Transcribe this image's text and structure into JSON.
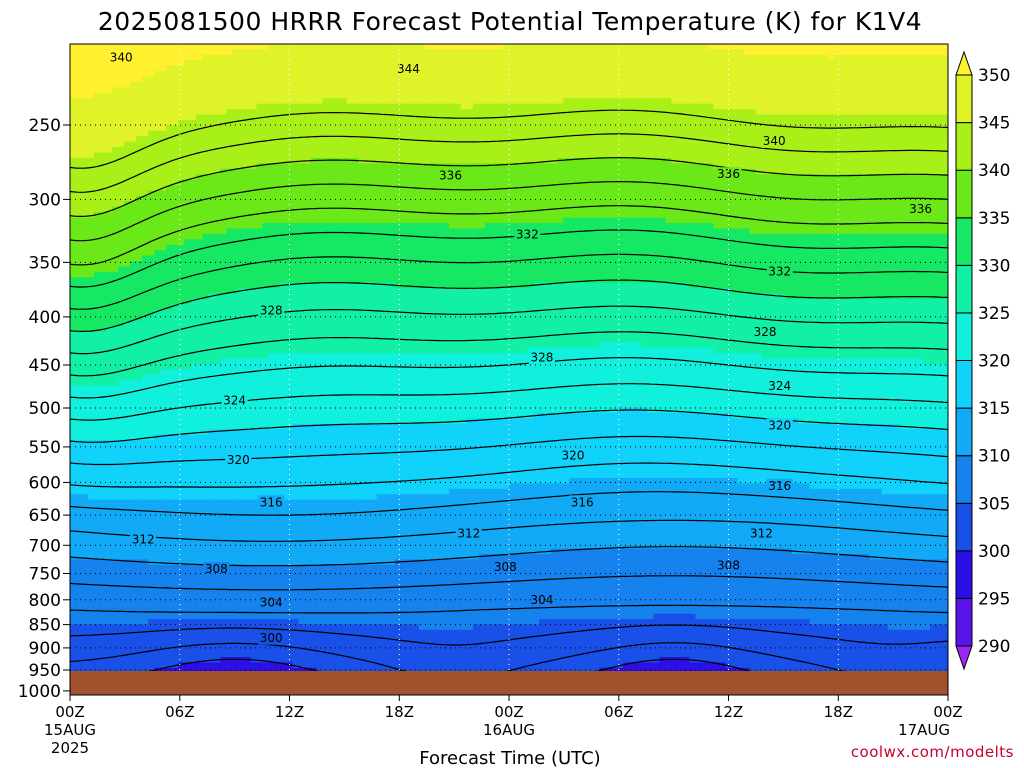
{
  "chart_data": {
    "type": "heatmap",
    "title": "2025081500 HRRR Forecast Potential Temperature (K) for K1V4",
    "xlabel": "Forecast Time (UTC)",
    "ylabel": "",
    "credit": "coolwx.com/modelts",
    "x_ticks": [
      "00Z",
      "06Z",
      "12Z",
      "18Z",
      "00Z",
      "06Z",
      "12Z",
      "18Z",
      "00Z"
    ],
    "x_hours": [
      0,
      6,
      12,
      18,
      24,
      30,
      36,
      42,
      48
    ],
    "x_date_labels": [
      {
        "hour": 0,
        "text": "15AUG"
      },
      {
        "hour": 0,
        "text": "2025"
      },
      {
        "hour": 24,
        "text": "16AUG"
      },
      {
        "hour": 48,
        "text": "17AUG"
      }
    ],
    "xlim": [
      0,
      48
    ],
    "y_axis": "pressure (hPa), log scale, inverted",
    "y_ticks": [
      250,
      300,
      350,
      400,
      450,
      500,
      550,
      600,
      650,
      700,
      750,
      800,
      850,
      900,
      950,
      1000
    ],
    "ylim": [
      1010,
      205
    ],
    "grid": true,
    "colorbar": {
      "levels": [
        285,
        290,
        295,
        300,
        305,
        310,
        315,
        320,
        325,
        330,
        335,
        340,
        345,
        350,
        355
      ],
      "tick_labels": [
        290,
        295,
        300,
        305,
        310,
        315,
        320,
        325,
        330,
        335,
        340,
        345,
        350
      ],
      "colors": [
        "#9a28f0",
        "#5a14ea",
        "#2a10e6",
        "#1850e8",
        "#1582ee",
        "#12aaf6",
        "#10d2fa",
        "#10f0dc",
        "#12f0a6",
        "#16e864",
        "#6ae818",
        "#a8f018",
        "#e0f228",
        "#fff030"
      ]
    },
    "contour_levels": [
      298,
      300,
      302,
      304,
      306,
      308,
      310,
      312,
      314,
      316,
      318,
      320,
      322,
      324,
      326,
      328,
      330,
      332,
      334,
      336,
      338,
      340,
      342,
      344
    ],
    "contour_labels": [
      {
        "hour": 2.8,
        "p": 212,
        "text": "340"
      },
      {
        "hour": 18.5,
        "p": 218,
        "text": "344"
      },
      {
        "hour": 38.5,
        "p": 260,
        "text": "340"
      },
      {
        "hour": 20.8,
        "p": 283,
        "text": "336"
      },
      {
        "hour": 36.0,
        "p": 282,
        "text": "336"
      },
      {
        "hour": 46.5,
        "p": 307,
        "text": "336"
      },
      {
        "hour": 25.0,
        "p": 327,
        "text": "332"
      },
      {
        "hour": 38.8,
        "p": 358,
        "text": "332"
      },
      {
        "hour": 11.0,
        "p": 394,
        "text": "328"
      },
      {
        "hour": 25.8,
        "p": 442,
        "text": "328"
      },
      {
        "hour": 38.0,
        "p": 415,
        "text": "328"
      },
      {
        "hour": 9.0,
        "p": 491,
        "text": "324"
      },
      {
        "hour": 38.8,
        "p": 474,
        "text": "324"
      },
      {
        "hour": 9.2,
        "p": 568,
        "text": "320"
      },
      {
        "hour": 27.5,
        "p": 562,
        "text": "320"
      },
      {
        "hour": 38.8,
        "p": 522,
        "text": "320"
      },
      {
        "hour": 11.0,
        "p": 630,
        "text": "316"
      },
      {
        "hour": 28.0,
        "p": 630,
        "text": "316"
      },
      {
        "hour": 38.8,
        "p": 605,
        "text": "316"
      },
      {
        "hour": 4.0,
        "p": 690,
        "text": "312"
      },
      {
        "hour": 21.8,
        "p": 680,
        "text": "312"
      },
      {
        "hour": 37.8,
        "p": 680,
        "text": "312"
      },
      {
        "hour": 8.0,
        "p": 742,
        "text": "308"
      },
      {
        "hour": 23.8,
        "p": 738,
        "text": "308"
      },
      {
        "hour": 36.0,
        "p": 735,
        "text": "308"
      },
      {
        "hour": 11.0,
        "p": 805,
        "text": "304"
      },
      {
        "hour": 25.8,
        "p": 800,
        "text": "304"
      },
      {
        "hour": 11.0,
        "p": 878,
        "text": "300"
      }
    ]
  }
}
